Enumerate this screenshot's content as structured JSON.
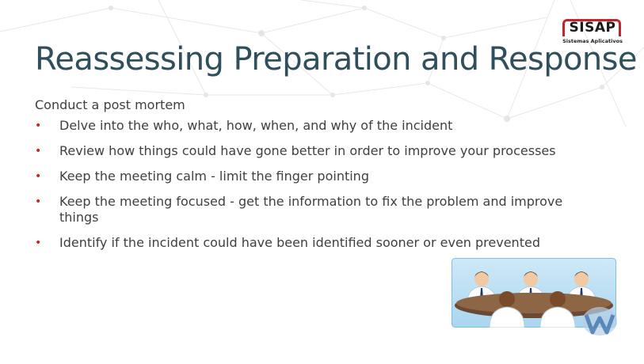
{
  "slide": {
    "title": "Reassessing Preparation and Response",
    "intro": "Conduct a post mortem",
    "bullets": [
      "Delve into the who, what, how, when, and why of the incident",
      "Review how things could have gone better in order to improve your processes",
      "Keep the meeting calm - limit the finger pointing",
      "Keep the meeting focused - get the information to fix the problem and improve things",
      "Identify if the incident could have been identified sooner or even prevented"
    ],
    "bullet_color": "#c0262b",
    "title_color": "#2f4f5c"
  },
  "logo": {
    "name": "SISAP",
    "tagline": "Sistemas Aplicativos",
    "accent": "#c0262b"
  },
  "illustration": {
    "icon": "meeting-table-icon"
  },
  "watermark": {
    "icon": "w-watermark-icon"
  }
}
